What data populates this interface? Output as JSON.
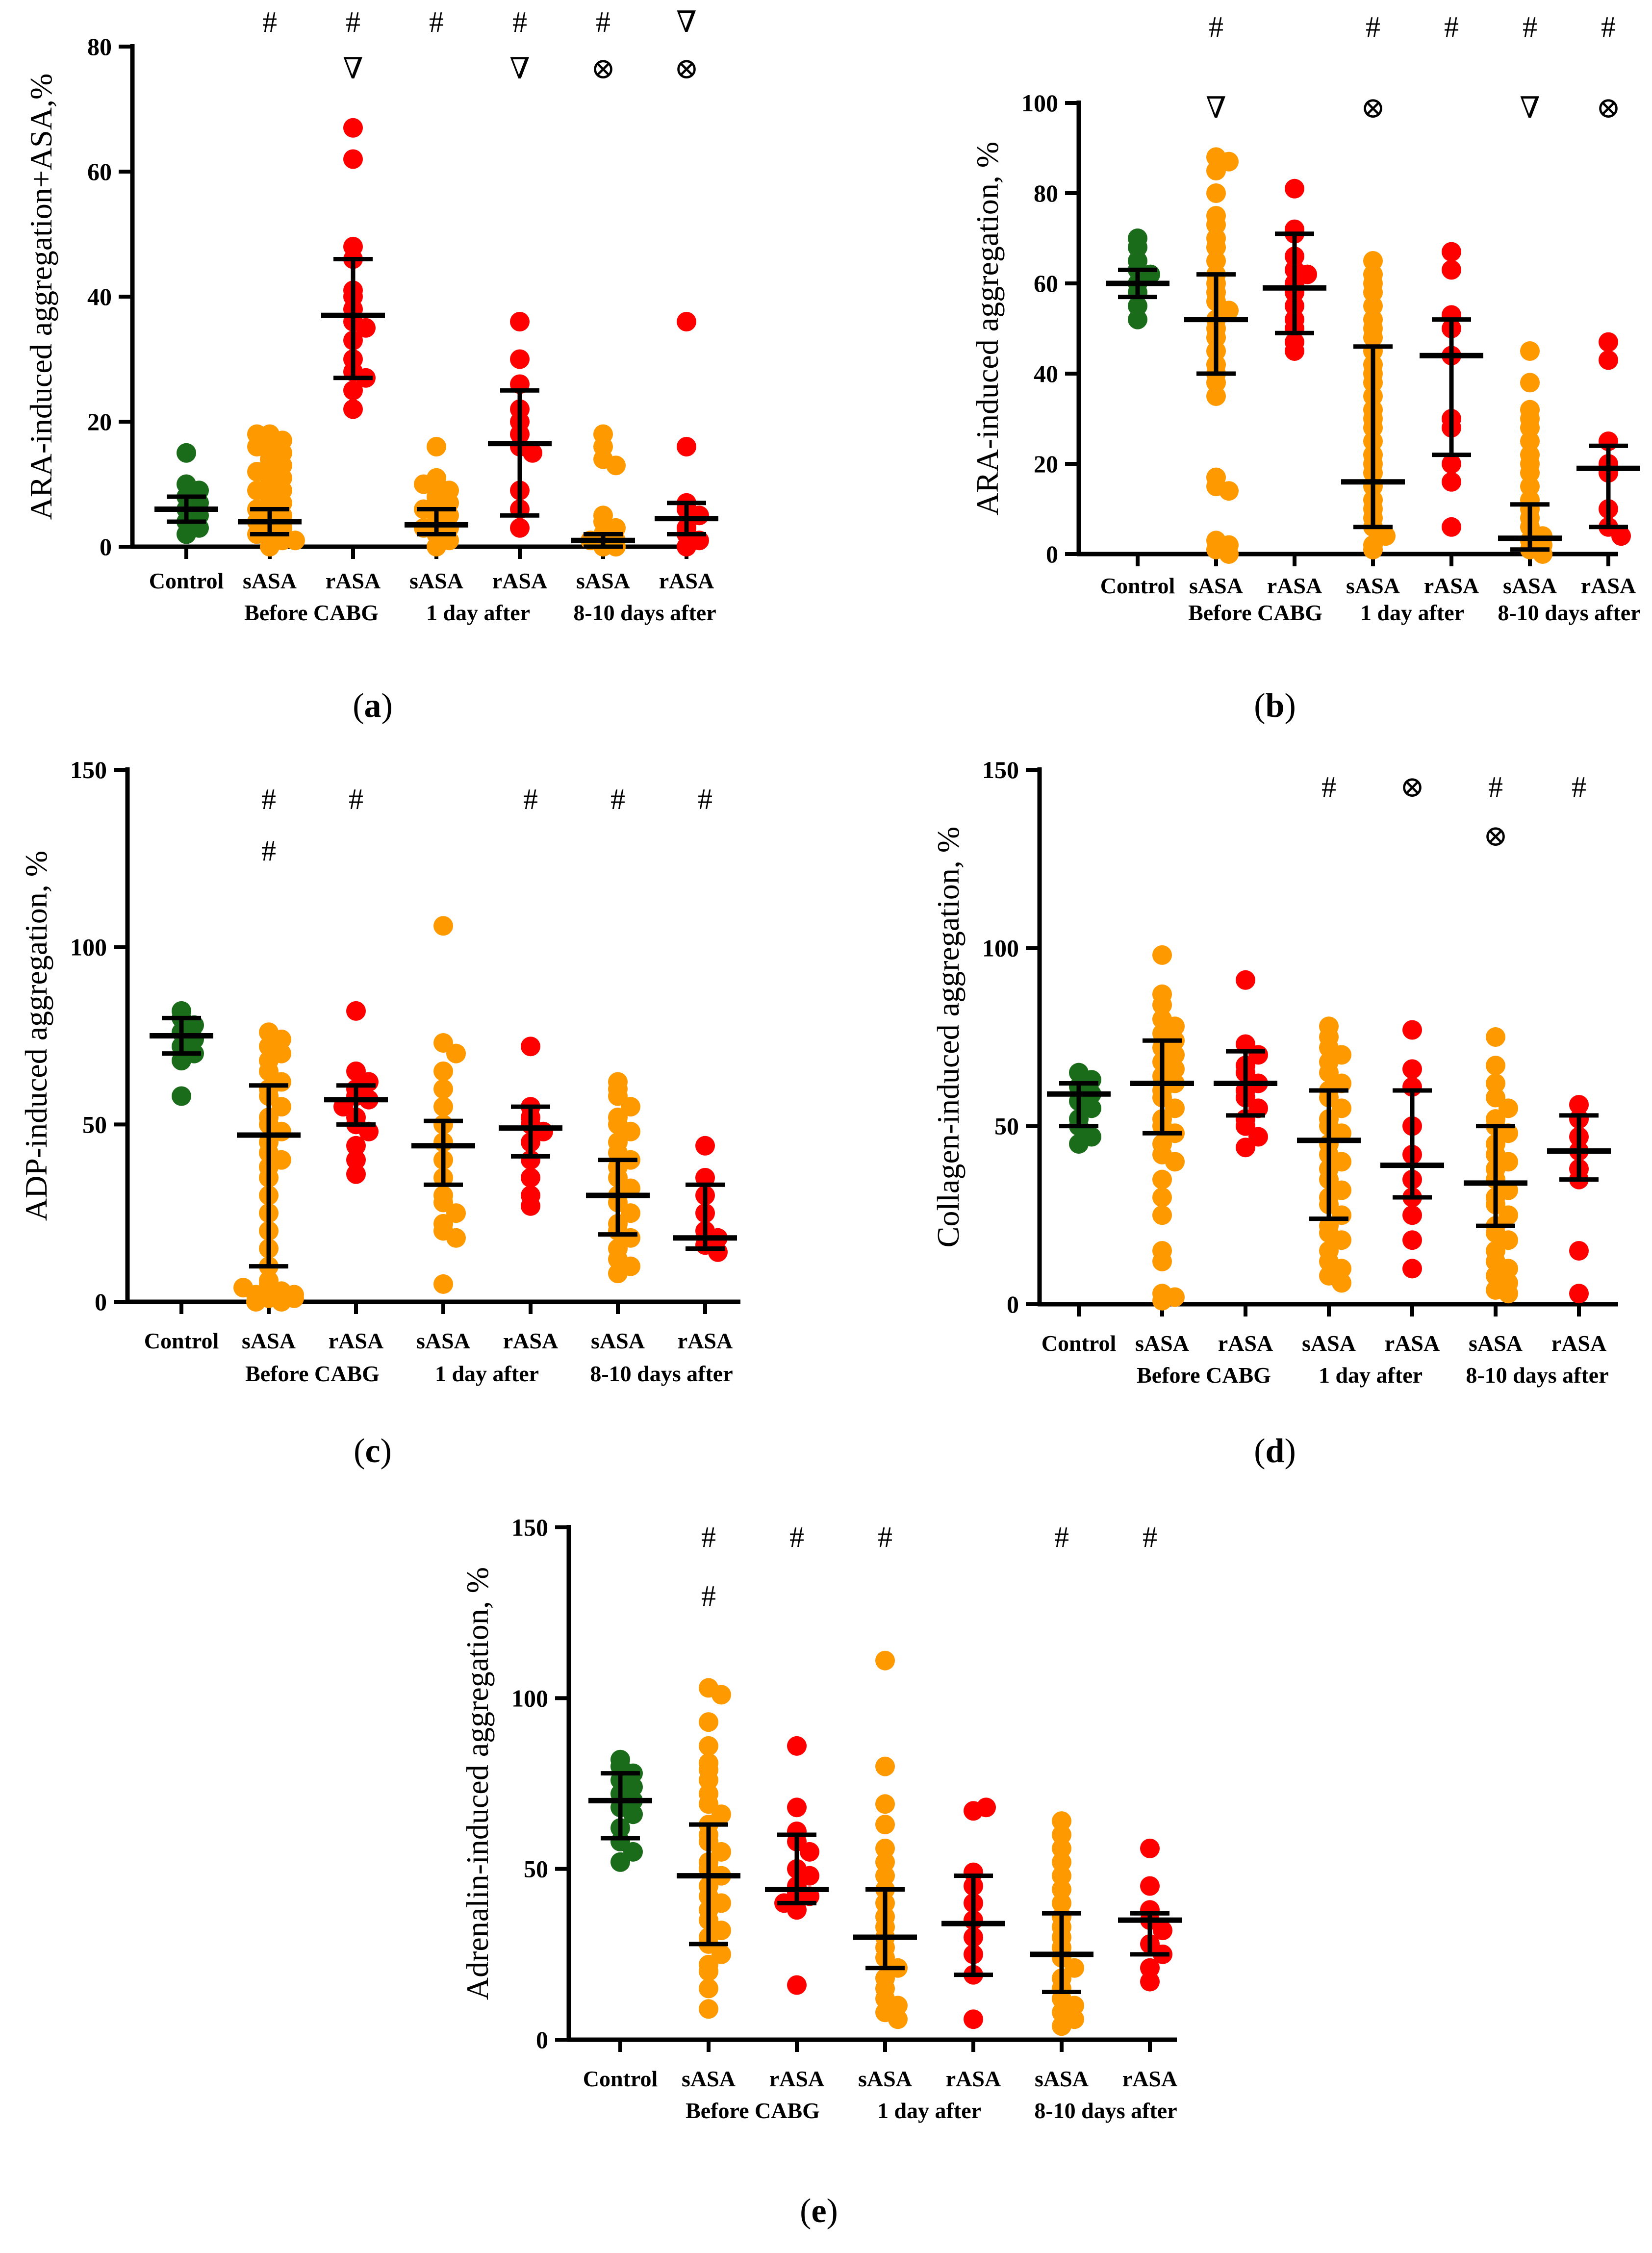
{
  "chart_data": [
    {
      "panel": "a",
      "type": "scatter",
      "ylabel": "ARA-induced aggregation+ASA,%",
      "ylim": [
        0,
        80
      ],
      "yticks": [
        0,
        20,
        40,
        60,
        80
      ],
      "categories": [
        "Control",
        "sASA",
        "rASA",
        "sASA",
        "rASA",
        "sASA",
        "rASA"
      ],
      "groups": [
        "Before CABG",
        "1 day after",
        "8-10 days after"
      ],
      "colors": [
        "#1a6b1a",
        "#ff9900",
        "#ff0000",
        "#ff9900",
        "#ff0000",
        "#ff9900",
        "#ff0000"
      ],
      "markers": [
        {
          "row1": "",
          "row2": ""
        },
        {
          "row1": "#",
          "row2": ""
        },
        {
          "row1": "#",
          "row2": "∇"
        },
        {
          "row1": "#",
          "row2": ""
        },
        {
          "row1": "#",
          "row2": "∇"
        },
        {
          "row1": "#",
          "row2": "⊗"
        },
        {
          "row1": "∇",
          "row2": "⊗"
        }
      ],
      "medians": [
        6,
        4,
        37,
        3.5,
        16.5,
        1,
        4.5
      ],
      "q1": [
        4,
        2,
        27,
        2,
        5,
        0,
        2
      ],
      "q3": [
        8,
        6,
        46,
        6,
        25,
        2,
        7
      ],
      "points": [
        [
          15,
          10,
          9,
          8,
          7,
          6,
          5,
          4,
          3,
          2
        ],
        [
          18,
          17,
          16,
          15,
          14,
          13,
          12,
          11,
          10,
          9,
          8,
          7,
          6,
          5,
          4,
          3,
          2,
          1,
          0,
          18,
          16,
          12,
          9,
          6,
          4,
          2,
          1
        ],
        [
          67,
          62,
          48,
          46,
          41,
          40,
          38,
          36,
          35,
          33,
          30,
          28,
          27,
          25,
          22
        ],
        [
          16,
          11,
          10,
          9,
          8,
          7,
          6,
          5,
          4,
          3,
          2,
          1,
          0,
          10,
          6,
          3
        ],
        [
          36,
          30,
          26,
          22,
          20,
          18,
          16,
          15,
          9,
          6,
          3
        ],
        [
          18,
          16,
          14,
          13,
          5,
          4,
          3,
          2,
          1,
          0,
          0,
          1
        ],
        [
          36,
          16,
          7,
          6,
          5,
          3,
          2,
          1,
          0
        ]
      ]
    },
    {
      "panel": "b",
      "type": "scatter",
      "ylabel": "ARA-induced aggregation, %",
      "ylim": [
        0,
        100
      ],
      "yticks": [
        0,
        20,
        40,
        60,
        80,
        100
      ],
      "categories": [
        "Control",
        "sASA",
        "rASA",
        "sASA",
        "rASA",
        "sASA",
        "rASA"
      ],
      "groups": [
        "Before CABG",
        "1 day after",
        "8-10 days after"
      ],
      "colors": [
        "#1a6b1a",
        "#ff9900",
        "#ff0000",
        "#ff9900",
        "#ff0000",
        "#ff9900",
        "#ff0000"
      ],
      "markers": [
        {
          "row1": "",
          "row2": ""
        },
        {
          "row1": "#",
          "row2": "∇"
        },
        {
          "row1": "",
          "row2": ""
        },
        {
          "row1": "#",
          "row2": "⊗"
        },
        {
          "row1": "#",
          "row2": ""
        },
        {
          "row1": "#",
          "row2": "∇"
        },
        {
          "row1": "#",
          "row2": "⊗"
        }
      ],
      "medians": [
        60,
        52,
        59,
        16,
        44,
        3.5,
        19
      ],
      "q1": [
        57,
        40,
        49,
        6,
        22,
        1,
        6
      ],
      "q3": [
        63,
        62,
        71,
        46,
        52,
        11,
        24
      ],
      "points": [
        [
          70,
          68,
          65,
          63,
          62,
          60,
          58,
          55,
          52
        ],
        [
          88,
          87,
          85,
          80,
          75,
          73,
          70,
          68,
          65,
          62,
          60,
          58,
          56,
          54,
          52,
          50,
          48,
          45,
          42,
          40,
          38,
          35,
          17,
          15,
          14,
          3,
          2,
          1,
          0
        ],
        [
          81,
          72,
          71,
          66,
          63,
          62,
          60,
          58,
          55,
          52,
          50,
          47,
          45
        ],
        [
          65,
          62,
          60,
          58,
          55,
          52,
          50,
          48,
          45,
          42,
          40,
          38,
          35,
          32,
          30,
          28,
          25,
          22,
          20,
          18,
          15,
          12,
          10,
          8,
          6,
          4,
          2,
          1
        ],
        [
          67,
          63,
          53,
          50,
          44,
          30,
          28,
          20,
          16,
          6
        ],
        [
          45,
          38,
          32,
          30,
          28,
          25,
          22,
          20,
          18,
          15,
          12,
          10,
          8,
          6,
          4,
          3,
          2,
          1,
          0
        ],
        [
          47,
          43,
          25,
          20,
          18,
          10,
          6,
          4
        ]
      ]
    },
    {
      "panel": "c",
      "type": "scatter",
      "ylabel": "ADP-induced aggregation, %",
      "ylim": [
        0,
        150
      ],
      "yticks": [
        0,
        50,
        100,
        150
      ],
      "categories": [
        "Control",
        "sASA",
        "rASA",
        "sASA",
        "rASA",
        "sASA",
        "rASA"
      ],
      "groups": [
        "Before CABG",
        "1 day after",
        "8-10 days after"
      ],
      "colors": [
        "#1a6b1a",
        "#ff9900",
        "#ff0000",
        "#ff9900",
        "#ff0000",
        "#ff9900",
        "#ff0000"
      ],
      "markers": [
        {
          "row1": "",
          "row2": ""
        },
        {
          "row1": "#",
          "row2": "#"
        },
        {
          "row1": "#",
          "row2": ""
        },
        {
          "row1": "",
          "row2": ""
        },
        {
          "row1": "#",
          "row2": ""
        },
        {
          "row1": "#",
          "row2": ""
        },
        {
          "row1": "#",
          "row2": ""
        }
      ],
      "medians": [
        75,
        47,
        57,
        44,
        49,
        30,
        18
      ],
      "q1": [
        70,
        10,
        50,
        33,
        41,
        19,
        15
      ],
      "q3": [
        80,
        61,
        61,
        51,
        55,
        40,
        33
      ],
      "points": [
        [
          82,
          80,
          78,
          76,
          74,
          72,
          70,
          68,
          58
        ],
        [
          76,
          74,
          72,
          70,
          68,
          65,
          62,
          60,
          58,
          55,
          52,
          50,
          48,
          45,
          42,
          40,
          38,
          35,
          30,
          25,
          20,
          15,
          10,
          5,
          3,
          2,
          1,
          0,
          0,
          1,
          2,
          4,
          6
        ],
        [
          82,
          65,
          62,
          60,
          58,
          57,
          55,
          52,
          50,
          48,
          44,
          40,
          36
        ],
        [
          106,
          73,
          70,
          65,
          60,
          55,
          50,
          45,
          40,
          35,
          30,
          28,
          25,
          22,
          20,
          18,
          5
        ],
        [
          72,
          55,
          52,
          50,
          48,
          45,
          40,
          35,
          30,
          27
        ],
        [
          62,
          60,
          58,
          55,
          52,
          50,
          48,
          45,
          42,
          40,
          38,
          35,
          32,
          30,
          28,
          25,
          22,
          20,
          18,
          15,
          12,
          10,
          8
        ],
        [
          44,
          35,
          30,
          25,
          20,
          18,
          16,
          14
        ]
      ]
    },
    {
      "panel": "d",
      "type": "scatter",
      "ylabel": "Collagen-induced aggregation, %",
      "ylim": [
        0,
        150
      ],
      "yticks": [
        0,
        50,
        100,
        150
      ],
      "categories": [
        "Control",
        "sASA",
        "rASA",
        "sASA",
        "rASA",
        "sASA",
        "rASA"
      ],
      "groups": [
        "Before CABG",
        "1 day after",
        "8-10 days after"
      ],
      "colors": [
        "#1a6b1a",
        "#ff9900",
        "#ff0000",
        "#ff9900",
        "#ff0000",
        "#ff9900",
        "#ff0000"
      ],
      "markers": [
        {
          "row1": "",
          "row2": ""
        },
        {
          "row1": "",
          "row2": ""
        },
        {
          "row1": "",
          "row2": ""
        },
        {
          "row1": "#",
          "row2": ""
        },
        {
          "row1": "⊗",
          "row2": ""
        },
        {
          "row1": "#",
          "row2": "⊗"
        },
        {
          "row1": "#",
          "row2": ""
        }
      ],
      "medians": [
        59,
        62,
        62,
        46,
        39,
        34,
        43
      ],
      "q1": [
        50,
        48,
        53,
        24,
        30,
        22,
        35
      ],
      "q3": [
        62,
        74,
        71,
        60,
        60,
        50,
        53
      ],
      "points": [
        [
          65,
          63,
          61,
          59,
          57,
          55,
          52,
          50,
          47,
          45
        ],
        [
          98,
          87,
          84,
          80,
          78,
          76,
          74,
          72,
          70,
          68,
          66,
          64,
          62,
          60,
          58,
          55,
          52,
          50,
          48,
          45,
          42,
          40,
          35,
          30,
          25,
          15,
          12,
          3,
          2,
          1
        ],
        [
          91,
          73,
          70,
          67,
          65,
          62,
          60,
          58,
          55,
          52,
          50,
          47,
          44
        ],
        [
          78,
          75,
          72,
          70,
          68,
          65,
          62,
          60,
          58,
          55,
          52,
          50,
          48,
          45,
          42,
          40,
          38,
          35,
          32,
          30,
          28,
          25,
          22,
          20,
          18,
          15,
          12,
          10,
          8,
          6
        ],
        [
          77,
          66,
          61,
          50,
          42,
          35,
          30,
          25,
          18,
          10
        ],
        [
          75,
          67,
          62,
          58,
          55,
          52,
          50,
          48,
          45,
          42,
          40,
          38,
          35,
          32,
          30,
          28,
          25,
          22,
          20,
          18,
          15,
          12,
          10,
          8,
          6,
          4,
          3
        ],
        [
          56,
          52,
          47,
          43,
          38,
          35,
          15,
          3
        ]
      ]
    },
    {
      "panel": "e",
      "type": "scatter",
      "ylabel": "Adrenalin-induced aggregation, %",
      "ylim": [
        0,
        150
      ],
      "yticks": [
        0,
        50,
        100,
        150
      ],
      "categories": [
        "Control",
        "sASA",
        "rASA",
        "sASA",
        "rASA",
        "sASA",
        "rASA"
      ],
      "groups": [
        "Before CABG",
        "1 day after",
        "8-10 days after"
      ],
      "colors": [
        "#1a6b1a",
        "#ff9900",
        "#ff0000",
        "#ff9900",
        "#ff0000",
        "#ff9900",
        "#ff0000"
      ],
      "markers": [
        {
          "row1": "",
          "row2": ""
        },
        {
          "row1": "#",
          "row2": "#"
        },
        {
          "row1": "#",
          "row2": ""
        },
        {
          "row1": "#",
          "row2": ""
        },
        {
          "row1": "",
          "row2": ""
        },
        {
          "row1": "#",
          "row2": ""
        },
        {
          "row1": "#",
          "row2": ""
        }
      ],
      "medians": [
        70,
        48,
        44,
        30,
        34,
        25,
        35
      ],
      "q1": [
        59,
        28,
        40,
        21,
        19,
        14,
        25
      ],
      "q3": [
        78,
        63,
        60,
        44,
        48,
        37,
        37
      ],
      "points": [
        [
          82,
          80,
          78,
          76,
          74,
          72,
          70,
          68,
          66,
          62,
          58,
          55,
          52
        ],
        [
          103,
          101,
          93,
          86,
          81,
          79,
          76,
          72,
          69,
          66,
          63,
          60,
          58,
          55,
          52,
          50,
          48,
          45,
          42,
          40,
          38,
          35,
          32,
          30,
          28,
          25,
          22,
          20,
          15,
          9
        ],
        [
          86,
          68,
          61,
          58,
          55,
          50,
          48,
          45,
          43,
          42,
          40,
          38,
          16
        ],
        [
          111,
          80,
          69,
          63,
          56,
          52,
          48,
          44,
          40,
          36,
          33,
          30,
          27,
          24,
          21,
          18,
          15,
          12,
          10,
          8,
          6
        ],
        [
          67,
          68,
          49,
          45,
          40,
          35,
          30,
          25,
          19,
          6
        ],
        [
          64,
          60,
          56,
          52,
          48,
          44,
          40,
          36,
          33,
          30,
          27,
          24,
          21,
          18,
          15,
          12,
          10,
          8,
          6,
          4
        ],
        [
          56,
          45,
          38,
          35,
          32,
          28,
          25,
          21,
          17
        ]
      ]
    }
  ],
  "captions": {
    "a": {
      "open": "(",
      "letter": "a",
      "close": ")"
    },
    "b": {
      "open": "(",
      "letter": "b",
      "close": ")"
    },
    "c": {
      "open": "(",
      "letter": "c",
      "close": ")"
    },
    "d": {
      "open": "(",
      "letter": "d",
      "close": ")"
    },
    "e": {
      "open": "(",
      "letter": "e",
      "close": ")"
    }
  }
}
